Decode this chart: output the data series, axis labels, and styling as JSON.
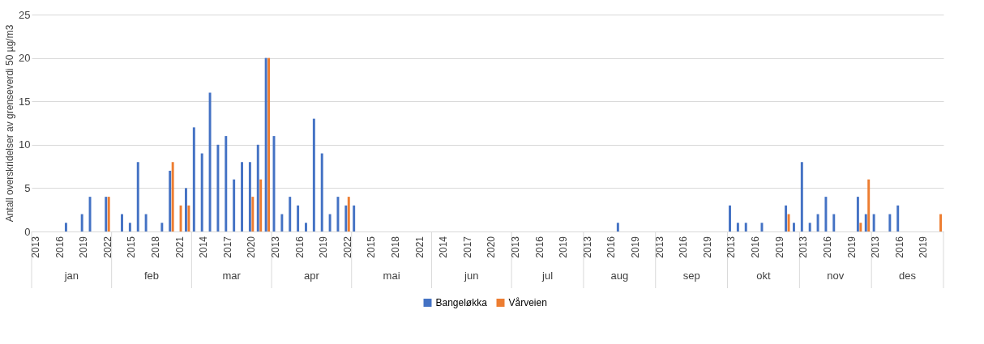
{
  "chart_data": {
    "type": "bar",
    "ylabel": "Antall overskridelser av grenseverdi 50 µg/m3",
    "categories": [
      "2013",
      null,
      null,
      "2016",
      null,
      null,
      "2019",
      null,
      null,
      "2022",
      null,
      null,
      "2015",
      null,
      null,
      "2018",
      null,
      null,
      "2021",
      null,
      null,
      "2014",
      null,
      null,
      "2017",
      null,
      null,
      "2020",
      null,
      null,
      "2013",
      null,
      null,
      "2016",
      null,
      null,
      "2019",
      null,
      null,
      "2022",
      null,
      null,
      "2015",
      null,
      null,
      "2018",
      null,
      null,
      "2021",
      null,
      null,
      "2014",
      null,
      null,
      "2017",
      null,
      null,
      "2020",
      null,
      null,
      "2013",
      null,
      null,
      "2016",
      null,
      null,
      "2019",
      null,
      null,
      "2013",
      null,
      null,
      "2016",
      null,
      null,
      "2019",
      null,
      null,
      "2013",
      null,
      null,
      "2016",
      null,
      null,
      "2019",
      null,
      null,
      "2013",
      null,
      null,
      "2016",
      null,
      null,
      "2019",
      null,
      null,
      "2013",
      null,
      null,
      "2016",
      null,
      null,
      "2019",
      null,
      null,
      "2013",
      null,
      null,
      "2016",
      null,
      null,
      "2019",
      null,
      null
    ],
    "annotations": [
      "jan",
      "feb",
      "mar",
      "apr",
      "mai",
      "jun",
      "jul",
      "aug",
      "sep",
      "okt",
      "nov",
      "des"
    ],
    "series": [
      {
        "name": "Bangeløkka",
        "color": "#4472c4",
        "values": [
          0,
          0,
          0,
          0,
          1,
          0,
          2,
          4,
          0,
          4,
          0,
          2,
          1,
          8,
          2,
          0,
          1,
          7,
          0,
          5,
          12,
          9,
          16,
          10,
          11,
          6,
          8,
          8,
          10,
          20,
          11,
          2,
          4,
          3,
          1,
          13,
          9,
          2,
          4,
          3,
          3,
          0,
          0,
          0,
          0,
          0,
          0,
          0,
          0,
          0,
          0,
          0,
          0,
          0,
          0,
          0,
          0,
          0,
          0,
          0,
          0,
          0,
          0,
          0,
          0,
          0,
          0,
          0,
          0,
          0,
          0,
          0,
          0,
          1,
          0,
          0,
          0,
          0,
          0,
          0,
          0,
          0,
          0,
          0,
          0,
          0,
          0,
          3,
          1,
          1,
          0,
          1,
          0,
          0,
          3,
          1,
          8,
          1,
          2,
          4,
          2,
          0,
          0,
          4,
          2,
          2,
          0,
          2,
          3,
          0,
          0,
          0,
          0,
          0
        ]
      },
      {
        "name": "Vårveien",
        "color": "#ed7d31",
        "values": [
          0,
          0,
          0,
          0,
          0,
          0,
          0,
          0,
          0,
          4,
          0,
          0,
          0,
          0,
          0,
          0,
          0,
          8,
          3,
          3,
          0,
          0,
          0,
          0,
          0,
          0,
          0,
          4,
          6,
          20,
          0,
          0,
          0,
          0,
          0,
          0,
          0,
          0,
          0,
          4,
          0,
          0,
          0,
          0,
          0,
          0,
          0,
          0,
          0,
          0,
          0,
          0,
          0,
          0,
          0,
          0,
          0,
          0,
          0,
          0,
          0,
          0,
          0,
          0,
          0,
          0,
          0,
          0,
          0,
          0,
          0,
          0,
          0,
          0,
          0,
          0,
          0,
          0,
          0,
          0,
          0,
          0,
          0,
          0,
          0,
          0,
          0,
          0,
          0,
          0,
          0,
          0,
          0,
          0,
          2,
          0,
          0,
          0,
          0,
          0,
          0,
          0,
          0,
          1,
          6,
          0,
          0,
          0,
          0,
          0,
          0,
          0,
          0,
          2
        ]
      }
    ],
    "ylim": [
      0,
      25
    ],
    "yticks": [
      0,
      5,
      10,
      15,
      20,
      25
    ],
    "grid": "y",
    "legend": "bottom"
  }
}
